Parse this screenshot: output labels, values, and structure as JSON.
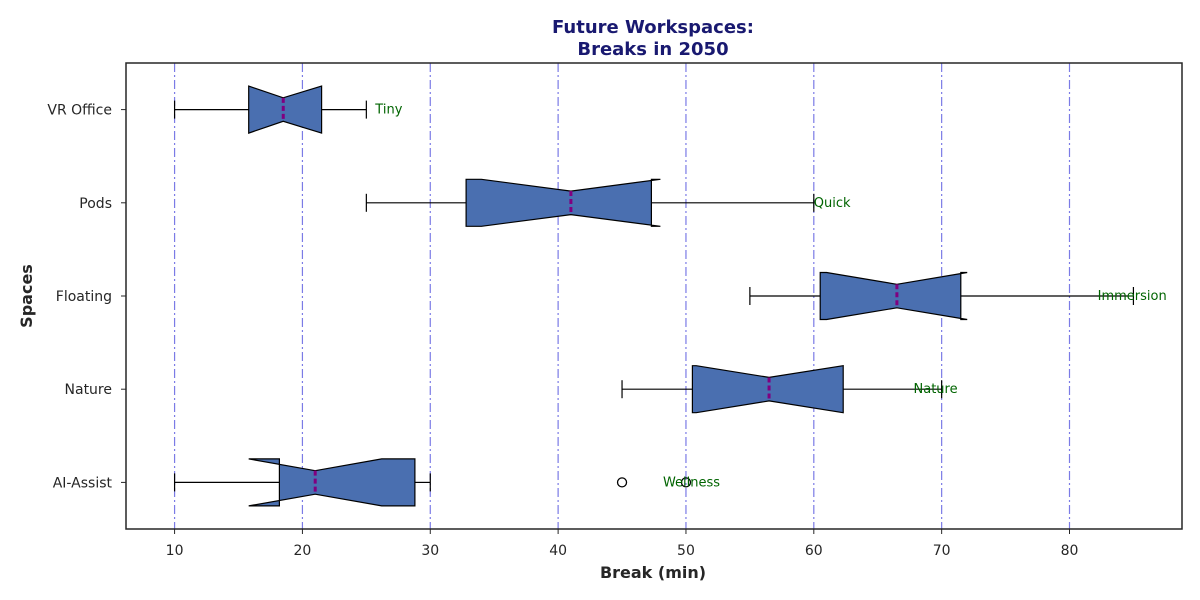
{
  "chart_data": {
    "type": "boxplot",
    "orientation": "horizontal",
    "notched": true,
    "title_lines": [
      "Future Workspaces:",
      "Breaks in 2050"
    ],
    "xlabel": "Break (min)",
    "ylabel": "Spaces",
    "xlim": [
      6.2,
      88.8
    ],
    "xticks": [
      10,
      20,
      30,
      40,
      50,
      60,
      70,
      80
    ],
    "grid": "vertical dash-dot",
    "categories": [
      "VR Office",
      "Pods",
      "Floating",
      "Nature",
      "AI-Assist"
    ],
    "boxes": [
      {
        "name": "VR Office",
        "whisker_low": 10,
        "q1": 15.8,
        "median": 18.5,
        "q3": 21.5,
        "whisker_high": 25,
        "notch_low": 15.8,
        "notch_high": 21.5,
        "outliers": [],
        "annotation": "Tiny",
        "annotation_x": 25.7
      },
      {
        "name": "Pods",
        "whisker_low": 25,
        "q1": 32.8,
        "median": 41,
        "q3": 47.3,
        "whisker_high": 60,
        "notch_low": 34,
        "notch_high": 48,
        "outliers": [],
        "annotation": "Quick",
        "annotation_x": 60
      },
      {
        "name": "Floating",
        "whisker_low": 55,
        "q1": 60.5,
        "median": 66.5,
        "q3": 71.5,
        "whisker_high": 85,
        "notch_low": 61,
        "notch_high": 72,
        "outliers": [],
        "annotation": "Immersion",
        "annotation_x": 82.2
      },
      {
        "name": "Nature",
        "whisker_low": 45,
        "q1": 50.5,
        "median": 56.5,
        "q3": 62.3,
        "whisker_high": 70,
        "notch_low": 50.8,
        "notch_high": 62.3,
        "outliers": [],
        "annotation": "Nature",
        "annotation_x": 67.8
      },
      {
        "name": "AI-Assist",
        "whisker_low": 10,
        "q1": 18.2,
        "median": 21,
        "q3": 28.8,
        "whisker_high": 30,
        "notch_low": 15.8,
        "notch_high": 26.2,
        "outliers": [
          45,
          50
        ],
        "annotation": "Wellness",
        "annotation_x": 48.2
      }
    ],
    "colors": {
      "box_fill": "#4a6fb0",
      "median": "#800080",
      "grid": "#7b7be6",
      "annotation": "#006400",
      "title": "#191970"
    }
  }
}
